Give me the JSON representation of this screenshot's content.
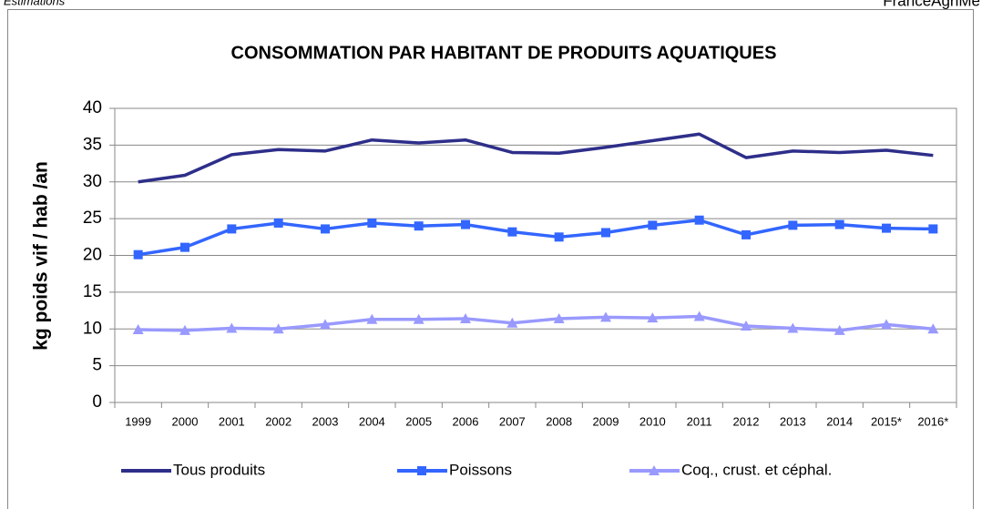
{
  "header": {
    "left": "Estimations",
    "right": "FranceAgriMe"
  },
  "chart_data": {
    "type": "line",
    "title": "CONSOMMATION PAR HABITANT DE PRODUITS AQUATIQUES",
    "y_label": "kg poids vif / hab /an",
    "categories": [
      "1999",
      "2000",
      "2001",
      "2002",
      "2003",
      "2004",
      "2005",
      "2006",
      "2007",
      "2008",
      "2009",
      "2010",
      "2011",
      "2012",
      "2013",
      "2014",
      "2015*",
      "2016*"
    ],
    "series": [
      {
        "name": "Tous produits",
        "color": "#2e2e8a",
        "marker": "none",
        "values": [
          30.0,
          30.9,
          33.7,
          34.4,
          34.2,
          35.7,
          35.3,
          35.7,
          34.0,
          33.9,
          34.7,
          35.6,
          36.5,
          33.3,
          34.2,
          34.0,
          34.3,
          33.6
        ]
      },
      {
        "name": "Poissons",
        "color": "#3366ff",
        "marker": "square",
        "values": [
          20.1,
          21.1,
          23.6,
          24.4,
          23.6,
          24.4,
          24.0,
          24.2,
          23.2,
          22.5,
          23.1,
          24.1,
          24.8,
          22.8,
          24.1,
          24.2,
          23.7,
          23.6
        ]
      },
      {
        "name": "Coq., crust. et céphal.",
        "color": "#9999ff",
        "marker": "triangle",
        "values": [
          9.9,
          9.8,
          10.1,
          10.0,
          10.6,
          11.3,
          11.3,
          11.4,
          10.8,
          11.4,
          11.6,
          11.5,
          11.7,
          10.4,
          10.1,
          9.8,
          10.6,
          10.0
        ]
      }
    ],
    "ylim": [
      0,
      40
    ],
    "yticks": [
      0,
      5,
      10,
      15,
      20,
      25,
      30,
      35,
      40
    ],
    "grid": true,
    "legend": "bottom"
  }
}
